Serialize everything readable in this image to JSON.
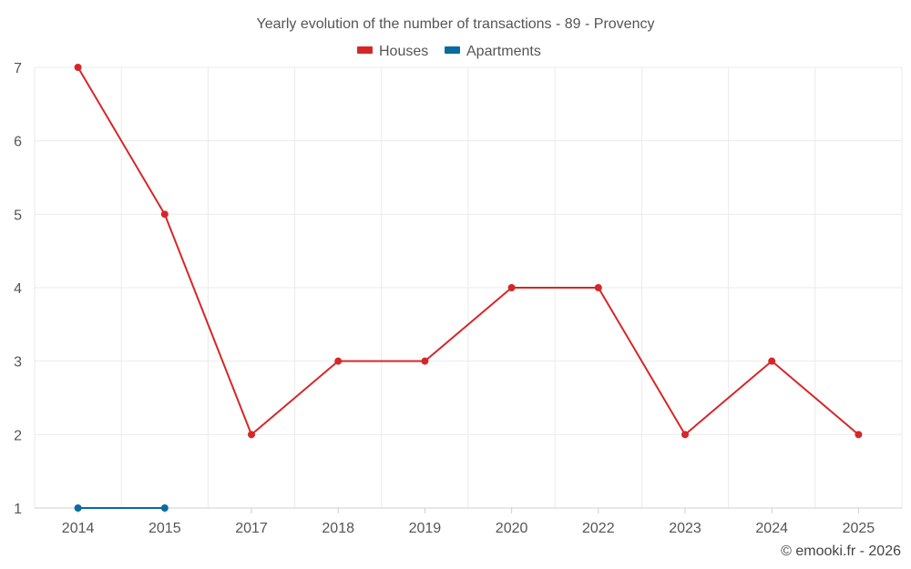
{
  "chart_data": {
    "type": "line",
    "title": "Yearly evolution of the number of transactions - 89 - Provency",
    "categories": [
      "2014",
      "2015",
      "2017",
      "2018",
      "2019",
      "2020",
      "2022",
      "2023",
      "2024",
      "2025"
    ],
    "series": [
      {
        "name": "Houses",
        "color": "#d62728",
        "values": [
          7,
          5,
          2,
          3,
          3,
          4,
          4,
          2,
          3,
          2
        ]
      },
      {
        "name": "Apartments",
        "color": "#0b6a9e",
        "values": [
          1,
          1,
          null,
          null,
          null,
          null,
          null,
          null,
          null,
          null
        ]
      }
    ],
    "xlabel": "",
    "ylabel": "",
    "ylim": [
      1,
      7
    ],
    "yticks": [
      1,
      2,
      3,
      4,
      5,
      6,
      7
    ],
    "grid": true,
    "legend_position": "top-center"
  },
  "credit": "© emooki.fr - 2026"
}
